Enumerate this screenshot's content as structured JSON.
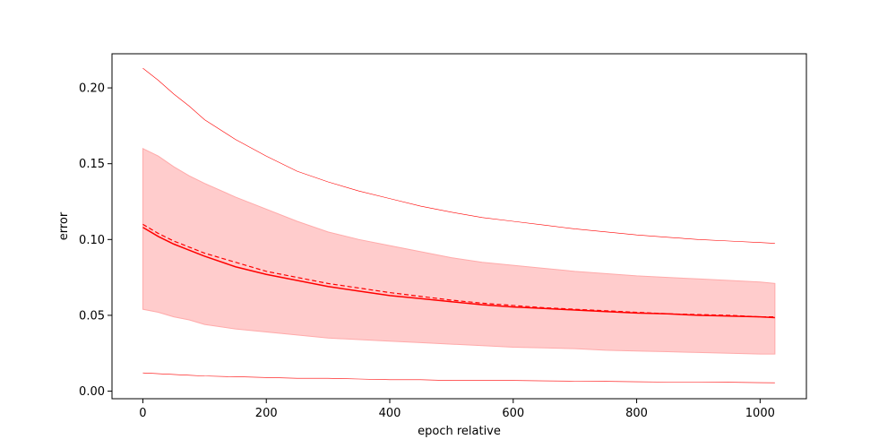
{
  "chart_data": {
    "type": "line",
    "title": "",
    "xlabel": "epoch relative",
    "ylabel": "error",
    "xlim": [
      -50,
      1075
    ],
    "ylim": [
      -0.005,
      0.2225
    ],
    "xticks": [
      0,
      200,
      400,
      600,
      800,
      1000
    ],
    "xtick_labels": [
      "0",
      "200",
      "400",
      "600",
      "800",
      "1000"
    ],
    "yticks": [
      0.0,
      0.05,
      0.1,
      0.15,
      0.2
    ],
    "ytick_labels": [
      "0.00",
      "0.05",
      "0.10",
      "0.15",
      "0.20"
    ],
    "grid": false,
    "legend": "none",
    "x": [
      0,
      25,
      50,
      75,
      100,
      150,
      200,
      250,
      300,
      350,
      400,
      450,
      500,
      550,
      600,
      650,
      700,
      750,
      800,
      850,
      900,
      950,
      1000,
      1024
    ],
    "series": [
      {
        "role": "mean",
        "style": "solid",
        "color": "#ff0000",
        "values": [
          0.108,
          0.102,
          0.097,
          0.093,
          0.089,
          0.082,
          0.077,
          0.073,
          0.069,
          0.066,
          0.063,
          0.061,
          0.059,
          0.057,
          0.0555,
          0.0545,
          0.0535,
          0.0525,
          0.0515,
          0.051,
          0.05,
          0.0495,
          0.049,
          0.0485
        ]
      },
      {
        "role": "median",
        "style": "dashed",
        "color": "#ff0000",
        "values": [
          0.11,
          0.104,
          0.099,
          0.095,
          0.091,
          0.085,
          0.079,
          0.075,
          0.071,
          0.068,
          0.065,
          0.0625,
          0.06,
          0.058,
          0.0565,
          0.055,
          0.054,
          0.053,
          0.052,
          0.051,
          0.0505,
          0.05,
          0.049,
          0.049
        ]
      },
      {
        "role": "upper-band",
        "color": "#ff0000",
        "values": [
          0.16,
          0.155,
          0.148,
          0.142,
          0.137,
          0.128,
          0.12,
          0.112,
          0.105,
          0.1,
          0.096,
          0.092,
          0.088,
          0.085,
          0.083,
          0.081,
          0.079,
          0.0775,
          0.076,
          0.075,
          0.074,
          0.073,
          0.072,
          0.071
        ]
      },
      {
        "role": "lower-band",
        "color": "#ff0000",
        "values": [
          0.054,
          0.052,
          0.049,
          0.047,
          0.044,
          0.041,
          0.039,
          0.037,
          0.035,
          0.034,
          0.033,
          0.032,
          0.031,
          0.03,
          0.029,
          0.0285,
          0.028,
          0.027,
          0.0265,
          0.026,
          0.0255,
          0.025,
          0.0245,
          0.0245
        ]
      },
      {
        "role": "max",
        "color": "#ff0000",
        "values": [
          0.213,
          0.205,
          0.196,
          0.188,
          0.179,
          0.166,
          0.155,
          0.145,
          0.138,
          0.132,
          0.127,
          0.122,
          0.118,
          0.1145,
          0.112,
          0.1095,
          0.107,
          0.105,
          0.103,
          0.1015,
          0.1,
          0.099,
          0.098,
          0.0975
        ]
      },
      {
        "role": "min",
        "color": "#ff0000",
        "values": [
          0.012,
          0.0115,
          0.011,
          0.0105,
          0.01,
          0.0095,
          0.009,
          0.0085,
          0.0085,
          0.008,
          0.0075,
          0.0075,
          0.007,
          0.007,
          0.007,
          0.0068,
          0.0066,
          0.0064,
          0.0062,
          0.006,
          0.006,
          0.0058,
          0.0056,
          0.0055
        ]
      }
    ],
    "colors": {
      "line": "#ff0000",
      "band_fill": "#ffcccc",
      "band_edge": "#ffaaaa",
      "axes": "#000000"
    }
  }
}
